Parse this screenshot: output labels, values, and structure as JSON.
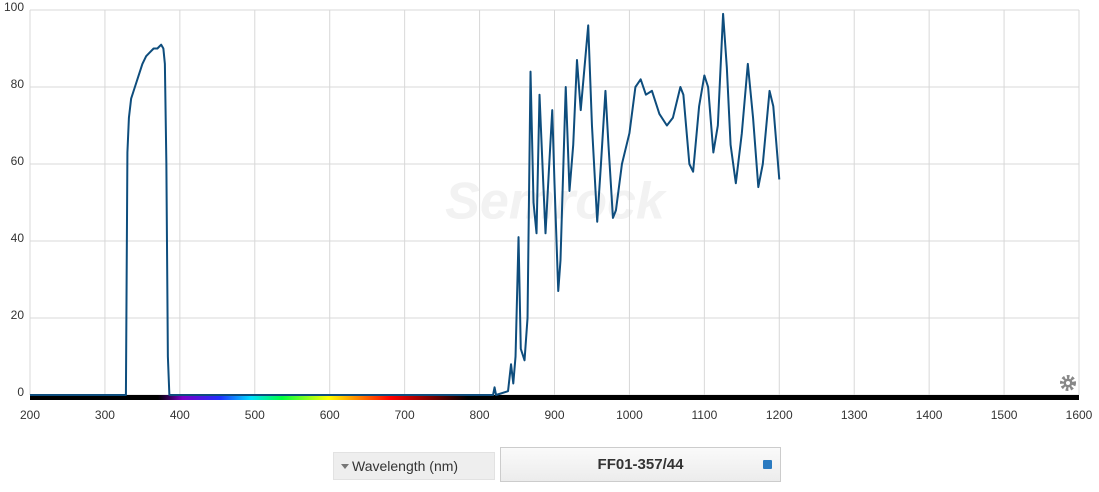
{
  "chart_data": {
    "type": "line",
    "title": "FF01-357/44",
    "xlabel": "Wavelength (nm)",
    "watermark": "Semrock",
    "color": "#0e4d7d",
    "grid": true,
    "xlim": [
      200,
      1600
    ],
    "xticks": [
      200,
      300,
      400,
      500,
      600,
      700,
      800,
      900,
      1000,
      1100,
      1200,
      1300,
      1400,
      1500,
      1600
    ],
    "ylim": [
      0,
      100
    ],
    "yticks": [
      0,
      20,
      40,
      60,
      80,
      100
    ],
    "x": [
      200,
      328,
      330,
      332,
      335,
      340,
      345,
      350,
      355,
      360,
      365,
      370,
      375,
      378,
      380,
      382,
      384,
      386,
      818,
      820,
      822,
      838,
      842,
      845,
      848,
      852,
      855,
      860,
      864,
      868,
      872,
      876,
      880,
      885,
      888,
      893,
      897,
      900,
      905,
      908,
      915,
      920,
      925,
      930,
      935,
      940,
      945,
      950,
      957,
      962,
      968,
      972,
      978,
      982,
      990,
      1000,
      1008,
      1015,
      1022,
      1030,
      1040,
      1050,
      1058,
      1068,
      1072,
      1080,
      1085,
      1093,
      1100,
      1105,
      1112,
      1118,
      1125,
      1130,
      1135,
      1142,
      1150,
      1158,
      1165,
      1172,
      1178,
      1187,
      1192,
      1200
    ],
    "values": [
      0,
      0,
      63,
      72,
      77,
      80,
      83,
      86,
      88,
      89,
      90,
      90,
      91,
      90,
      86,
      60,
      10,
      0,
      0,
      2,
      0,
      1,
      8,
      3,
      10,
      41,
      12,
      9,
      20,
      84,
      50,
      42,
      78,
      55,
      42,
      60,
      74,
      55,
      27,
      35,
      80,
      53,
      65,
      87,
      74,
      85,
      96,
      70,
      45,
      60,
      79,
      65,
      46,
      48,
      60,
      68,
      80,
      82,
      78,
      79,
      73,
      70,
      72,
      80,
      78,
      60,
      58,
      75,
      83,
      80,
      63,
      70,
      99,
      85,
      65,
      55,
      68,
      86,
      72,
      54,
      60,
      79,
      75,
      56
    ]
  }
}
